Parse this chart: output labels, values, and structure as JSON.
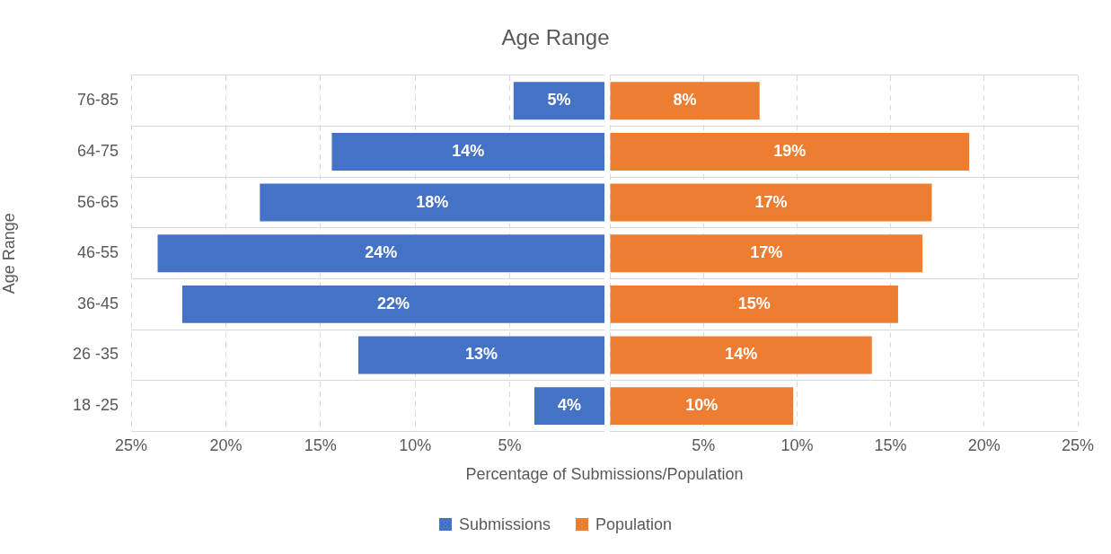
{
  "chart_data": [
    {
      "type": "bar",
      "orientation": "horizontal",
      "title": "Age Range",
      "xlabel": "Percentage of Submissions/Population",
      "ylabel": "Age Range",
      "categories": [
        "76-85",
        "64-75",
        "56-65",
        "46-55",
        "36-45",
        "26 -35",
        "18 -25"
      ],
      "series": [
        {
          "name": "Submissions",
          "color": "#4472c4",
          "values": [
            4.8,
            14.4,
            18.2,
            23.6,
            22.3,
            13.0,
            3.7
          ],
          "value_labels": [
            "5%",
            "14%",
            "18%",
            "24%",
            "22%",
            "13%",
            "4%"
          ]
        }
      ],
      "xlim": [
        25,
        0
      ],
      "xticks": [
        {
          "value": 25,
          "label": "25%"
        },
        {
          "value": 20,
          "label": "20%"
        },
        {
          "value": 15,
          "label": "15%"
        },
        {
          "value": 10,
          "label": "10%"
        },
        {
          "value": 5,
          "label": "5%"
        }
      ],
      "grid": true,
      "legend": "bottom"
    },
    {
      "type": "bar",
      "orientation": "horizontal",
      "tick_labels": "x",
      "categories": [
        null,
        null,
        null,
        null,
        null,
        null,
        null
      ],
      "series": [
        {
          "name": "Population",
          "color": "#ed7d31",
          "values": [
            8.0,
            19.2,
            17.2,
            16.7,
            15.4,
            14.0,
            9.8
          ],
          "value_labels": [
            "8%",
            "19%",
            "17%",
            "17%",
            "15%",
            "14%",
            "10%"
          ]
        }
      ],
      "xlim": [
        0,
        25
      ],
      "xticks": [
        {
          "value": 0,
          "label": null
        },
        {
          "value": 5,
          "label": "5%"
        },
        {
          "value": 10,
          "label": "10%"
        },
        {
          "value": 15,
          "label": "15%"
        },
        {
          "value": 20,
          "label": "20%"
        },
        {
          "value": 25,
          "label": "25%"
        }
      ],
      "grid": true,
      "legend": "bottom"
    }
  ]
}
